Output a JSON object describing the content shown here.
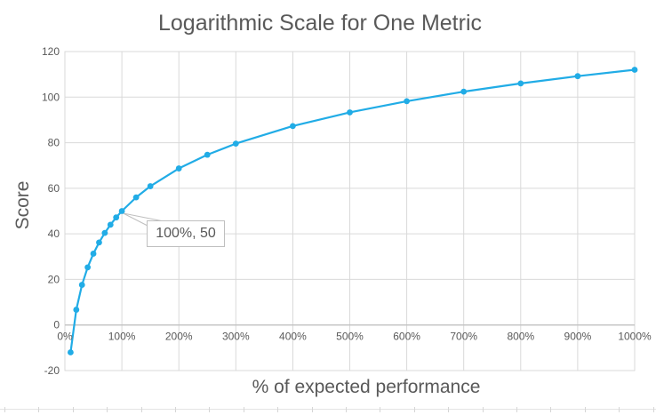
{
  "chart": {
    "title": "Logarithmic Scale for One Metric",
    "x_axis_title": "% of expected performance",
    "y_axis_title": "Score",
    "annotation_label": "100%, 50"
  },
  "chart_data": {
    "type": "line",
    "title": "Logarithmic Scale for One Metric",
    "xlabel": "% of expected performance",
    "ylabel": "Score",
    "xlim": [
      0,
      1000
    ],
    "ylim": [
      -20,
      120
    ],
    "grid": true,
    "x_ticks": [
      {
        "value": 0,
        "label": "0%"
      },
      {
        "value": 100,
        "label": "100%"
      },
      {
        "value": 200,
        "label": "200%"
      },
      {
        "value": 300,
        "label": "300%"
      },
      {
        "value": 400,
        "label": "400%"
      },
      {
        "value": 500,
        "label": "500%"
      },
      {
        "value": 600,
        "label": "600%"
      },
      {
        "value": 700,
        "label": "700%"
      },
      {
        "value": 800,
        "label": "800%"
      },
      {
        "value": 900,
        "label": "900%"
      },
      {
        "value": 1000,
        "label": "1000%"
      }
    ],
    "y_ticks": [
      {
        "value": 120,
        "label": "120"
      },
      {
        "value": 100,
        "label": "100"
      },
      {
        "value": 80,
        "label": "80"
      },
      {
        "value": 60,
        "label": "60"
      },
      {
        "value": 40,
        "label": "40"
      },
      {
        "value": 20,
        "label": "20"
      },
      {
        "value": 0,
        "label": "0"
      },
      {
        "value": -20,
        "label": "-20"
      }
    ],
    "series": [
      {
        "name": "Score",
        "color": "#21ACE6",
        "marker": "circle",
        "points": [
          [
            10,
            -12.0
          ],
          [
            20,
            6.7
          ],
          [
            30,
            17.6
          ],
          [
            40,
            25.3
          ],
          [
            50,
            31.3
          ],
          [
            60,
            36.2
          ],
          [
            70,
            40.4
          ],
          [
            80,
            44.0
          ],
          [
            90,
            47.2
          ],
          [
            100,
            50.0
          ],
          [
            125,
            56.0
          ],
          [
            150,
            60.9
          ],
          [
            200,
            68.7
          ],
          [
            250,
            74.7
          ],
          [
            300,
            79.6
          ],
          [
            400,
            87.3
          ],
          [
            500,
            93.3
          ],
          [
            600,
            98.2
          ],
          [
            700,
            102.4
          ],
          [
            800,
            106.0
          ],
          [
            900,
            109.2
          ],
          [
            1000,
            112.0
          ]
        ]
      }
    ],
    "annotation": {
      "text": "100%, 50",
      "point": [
        100,
        50
      ]
    }
  },
  "colors": {
    "line": "#21ACE6",
    "gridline": "#d9d9d9",
    "plot_border": "#d9d9d9",
    "axis_line": "#bfbfbf",
    "text": "#595959",
    "callout_border": "#bfbfbf",
    "callout_fill": "#ffffff",
    "sheet_line": "#e4e4e4"
  }
}
